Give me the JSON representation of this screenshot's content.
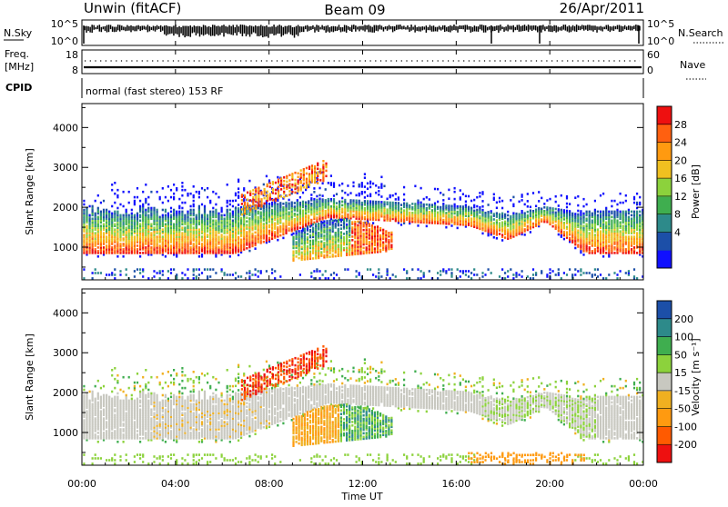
{
  "header": {
    "station": "Unwin (fitACF)",
    "beam": "Beam 09",
    "date": "26/Apr/2011"
  },
  "nsky_panel": {
    "left_label": "N.Sky",
    "right_label": "N.Search",
    "left_ticks": [
      "10^5",
      "10^0"
    ],
    "right_ticks": [
      "10^5",
      "10^0"
    ]
  },
  "freq_panel": {
    "left_label_top": "Freq.",
    "left_label_bottom": "[MHz]",
    "right_label": "Nave",
    "left_ticks": [
      "18",
      "8"
    ],
    "right_ticks": [
      "60",
      "0"
    ]
  },
  "cpid_panel": {
    "label": "CPID",
    "mode": "normal (fast stereo) 153 RF"
  },
  "chart_data": [
    {
      "type": "heatmap",
      "name": "power",
      "ylabel": "Slant Range [km]",
      "yticks": [
        1000,
        2000,
        3000,
        4000
      ],
      "ylim": [
        180,
        4600
      ],
      "xlim": [
        0,
        24
      ],
      "colorbar": {
        "label": "Power [dB]",
        "ticks": [
          "28",
          "24",
          "20",
          "16",
          "12",
          "8",
          "4"
        ],
        "colors": [
          "#1010ff",
          "#1c4fa8",
          "#2d8a8a",
          "#3fae4f",
          "#8cd23c",
          "#f0c020",
          "#ff9a10",
          "#ff6010",
          "#ee1010"
        ]
      }
    },
    {
      "type": "heatmap",
      "name": "velocity",
      "ylabel": "Slant Range [km]",
      "yticks": [
        1000,
        2000,
        3000,
        4000
      ],
      "ylim": [
        180,
        4600
      ],
      "xlim": [
        0,
        24
      ],
      "colorbar": {
        "label": "Velocity [m s⁻¹]",
        "ticks": [
          "200",
          "100",
          "50",
          "15",
          "-15",
          "-50",
          "-100",
          "-200"
        ],
        "colors": [
          "#ee1010",
          "#ff5a00",
          "#ff9a10",
          "#f0b020",
          "#c8c8c0",
          "#8cd23c",
          "#3fae4f",
          "#2d8a8a",
          "#1c4fa8"
        ]
      }
    }
  ],
  "xaxis": {
    "label": "Time UT",
    "ticks": [
      {
        "t": 0,
        "label": "00:00"
      },
      {
        "t": 4,
        "label": "04:00"
      },
      {
        "t": 8,
        "label": "08:00"
      },
      {
        "t": 12,
        "label": "12:00"
      },
      {
        "t": 16,
        "label": "16:00"
      },
      {
        "t": 20,
        "label": "20:00"
      },
      {
        "t": 24,
        "label": "00:00"
      }
    ]
  }
}
